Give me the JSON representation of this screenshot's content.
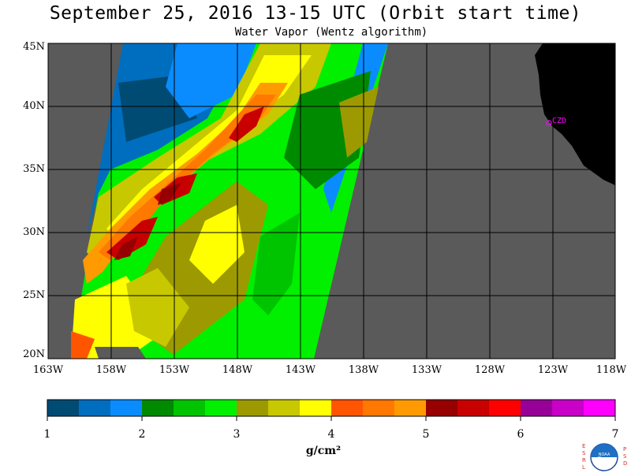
{
  "header": {
    "title": "September 25, 2016  13-15 UTC  (Orbit start time)",
    "subtitle": "Water Vapor (Wentz algorithm)"
  },
  "map": {
    "lat_labels": [
      "45N",
      "40N",
      "35N",
      "30N",
      "25N",
      "20N"
    ],
    "lat_values": [
      45,
      40,
      35,
      30,
      25,
      20
    ],
    "lon_labels": [
      "163W",
      "158W",
      "153W",
      "148W",
      "143W",
      "138W",
      "133W",
      "128W",
      "123W",
      "118W"
    ],
    "lon_values": [
      -163,
      -158,
      -153,
      -148,
      -143,
      -138,
      -133,
      -128,
      -123,
      -118
    ],
    "station_label": "CZD",
    "station_lat": 38.6,
    "station_lon": -123.2,
    "colors": {
      "no_data": "#5a5a5a",
      "land": "#000000",
      "grid": "#000000",
      "station": "#ff00ff"
    }
  },
  "colorbar": {
    "tick_labels": [
      "1",
      "2",
      "3",
      "4",
      "5",
      "6",
      "7"
    ],
    "range": [
      1,
      7
    ],
    "units": "g/cm²",
    "colors": [
      "#004b73",
      "#006ebf",
      "#0a8cff",
      "#008a00",
      "#00c400",
      "#00f000",
      "#9c9a00",
      "#c8c800",
      "#ffff00",
      "#ff5500",
      "#ff7800",
      "#ff9b00",
      "#960000",
      "#c80000",
      "#ff0000",
      "#960096",
      "#c800c8",
      "#ff00ff"
    ]
  },
  "logo": {
    "left_letters": "ESRL",
    "right_letters": "PSD",
    "text": "NOAA"
  }
}
